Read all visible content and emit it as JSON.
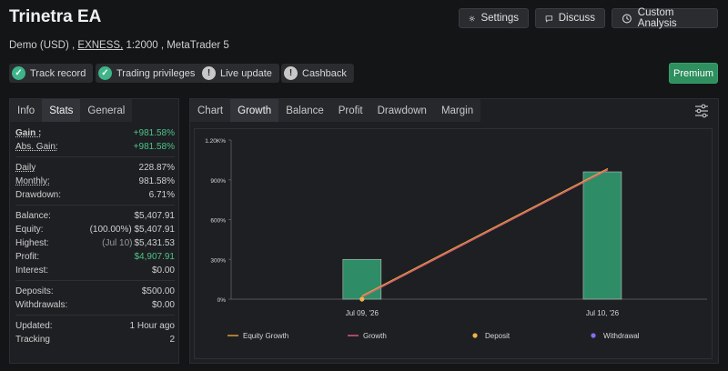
{
  "header": {
    "title": "Trinetra EA",
    "buttons": {
      "settings": "Settings",
      "discuss": "Discuss",
      "custom": "Custom Analysis"
    },
    "account_type": "Demo (USD) ,",
    "broker": "EXNESS,",
    "leverage_platform": "1:2000 , MetaTrader 5"
  },
  "badges": {
    "track_record": "Track record",
    "trading_privileges": "Trading privileges",
    "live_update": "Live update",
    "cashback": "Cashback",
    "premium": "Premium",
    "ok_symbol": "✓",
    "warn_symbol": "!"
  },
  "left_tabs": {
    "info": "Info",
    "stats": "Stats",
    "general": "General"
  },
  "stats": {
    "gain_label": "Gain :",
    "gain": "+981.58%",
    "abs_gain_label": "Abs. Gain:",
    "abs_gain": "+981.58%",
    "daily_label": "Daily",
    "daily": "228.87%",
    "monthly_label": "Monthly:",
    "monthly": "981.58%",
    "drawdown_label": "Drawdown:",
    "drawdown": "6.71%",
    "balance_label": "Balance:",
    "balance": "$5,407.91",
    "equity_label": "Equity:",
    "equity_pct": "(100.00%)",
    "equity": "$5,407.91",
    "highest_label": "Highest:",
    "highest_date": "(Jul 10)",
    "highest": "$5,431.53",
    "profit_label": "Profit:",
    "profit": "$4,907.91",
    "interest_label": "Interest:",
    "interest": "$0.00",
    "deposits_label": "Deposits:",
    "deposits": "$500.00",
    "withdrawals_label": "Withdrawals:",
    "withdrawals": "$0.00",
    "updated_label": "Updated:",
    "updated": "1 Hour ago",
    "tracking_label": "Tracking",
    "tracking": "2"
  },
  "chart_tabs": {
    "chart": "Chart",
    "growth": "Growth",
    "balance": "Balance",
    "profit": "Profit",
    "drawdown": "Drawdown",
    "margin": "Margin"
  },
  "chart_data": {
    "type": "bar",
    "categories": [
      "Jul 09, '26",
      "Jul 10, '26"
    ],
    "y_ticks": [
      "0%",
      "300%",
      "600%",
      "900%",
      "1.20K%"
    ],
    "ylim": [
      0,
      1200
    ],
    "series": [
      {
        "name": "Equity Growth",
        "kind": "line",
        "color": "#e8a33c",
        "values": [
          25,
          985
        ]
      },
      {
        "name": "Growth",
        "kind": "line",
        "color": "#e0607e",
        "values": [
          15,
          975
        ]
      },
      {
        "name": "Deposit",
        "kind": "point",
        "color": "#f0b34a",
        "values": [
          0,
          null
        ]
      },
      {
        "name": "Withdrawal",
        "kind": "point",
        "color": "#8a6cf0",
        "values": [
          null,
          null
        ]
      }
    ],
    "bars": {
      "color": "#2e8d66",
      "values": [
        300,
        960
      ]
    },
    "grid": false,
    "legend": "bottom"
  }
}
